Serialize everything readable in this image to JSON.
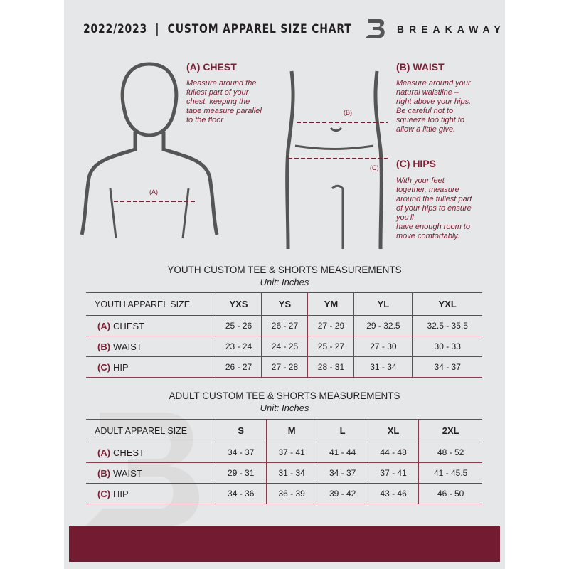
{
  "header": {
    "title": "2022/2023  |  CUSTOM APPAREL SIZE CHART",
    "brand": "BREAKAWAY"
  },
  "guide": {
    "chest": {
      "heading": "(A) CHEST",
      "text": [
        "Measure around the",
        "fullest part of your",
        "chest, keeping the",
        "tape measure parallel",
        "to the floor"
      ],
      "marker": "(A)"
    },
    "waist": {
      "heading": "(B) WAIST",
      "text": [
        "Measure around your",
        "natural waistline –",
        "right above your hips.",
        "Be careful not to",
        "squeeze too tight to",
        "allow a little give."
      ],
      "marker": "(B)"
    },
    "hips": {
      "heading": "(C) HIPS",
      "text": [
        "With your feet",
        "together, measure",
        "around the fullest part",
        "of your hips to ensure",
        "you'll",
        "have enough room to",
        "move comfortably."
      ],
      "marker": "(C)"
    }
  },
  "youth": {
    "title": "YOUTH CUSTOM TEE & SHORTS MEASUREMENTS",
    "unit": "Unit: Inches",
    "header": "YOUTH APPAREL SIZE",
    "sizes": [
      "YXS",
      "YS",
      "YM",
      "YL",
      "YXL"
    ],
    "rows": [
      {
        "letter": "(A)",
        "label": "CHEST",
        "values": [
          "25 - 26",
          "26 - 27",
          "27 - 29",
          "29 - 32.5",
          "32.5 - 35.5"
        ]
      },
      {
        "letter": "(B)",
        "label": "WAIST",
        "values": [
          "23 - 24",
          "24 - 25",
          "25 - 27",
          "27 - 30",
          "30 - 33"
        ]
      },
      {
        "letter": "(C)",
        "label": "HIP",
        "values": [
          "26 - 27",
          "27 - 28",
          "28 - 31",
          "31 - 34",
          "34 - 37"
        ]
      }
    ]
  },
  "adult": {
    "title": "ADULT CUSTOM TEE & SHORTS MEASUREMENTS",
    "unit": "Unit: Inches",
    "header": "ADULT APPAREL SIZE",
    "sizes": [
      "S",
      "M",
      "L",
      "XL",
      "2XL"
    ],
    "rows": [
      {
        "letter": "(A)",
        "label": "CHEST",
        "values": [
          "34 - 37",
          "37 - 41",
          "41 - 44",
          "44 - 48",
          "48 - 52"
        ]
      },
      {
        "letter": "(B)",
        "label": "WAIST",
        "values": [
          "29 - 31",
          "31 - 34",
          "34 - 37",
          "37 - 41",
          "41 - 45.5"
        ]
      },
      {
        "letter": "(C)",
        "label": "HIP",
        "values": [
          "34 - 36",
          "36 - 39",
          "39 - 42",
          "43 - 46",
          "46 - 50"
        ]
      }
    ]
  },
  "colors": {
    "accent": "#731c31",
    "panel": "#e6e7e8"
  }
}
